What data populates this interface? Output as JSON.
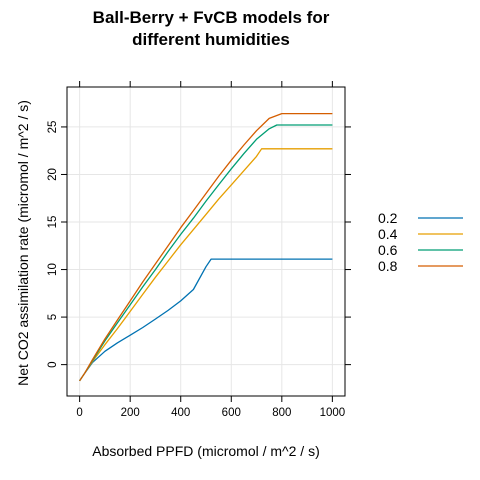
{
  "chart_data": {
    "type": "line",
    "title_lines": [
      "Ball-Berry + FvCB models for",
      "different humidities"
    ],
    "xlabel": "Absorbed PPFD (micromol / m^2 / s)",
    "ylabel": "Net CO2 assimilation rate (micromol / m^2 / s)",
    "xlim": [
      -50,
      1050
    ],
    "ylim": [
      -3.3,
      29.2
    ],
    "xticks": [
      0,
      200,
      400,
      600,
      800,
      1000
    ],
    "yticks": [
      0,
      5,
      10,
      15,
      20,
      25
    ],
    "grid": true,
    "legend_position": "right",
    "x": [
      0,
      20,
      50,
      100,
      150,
      200,
      250,
      300,
      350,
      400,
      450,
      500,
      550,
      600,
      650,
      700,
      750,
      800,
      850,
      900,
      950,
      1000
    ],
    "series": [
      {
        "name": "0.2",
        "color": "#0072B2",
        "points": [
          [
            0,
            -1.7
          ],
          [
            20,
            -0.9
          ],
          [
            50,
            0.2
          ],
          [
            100,
            1.4
          ],
          [
            150,
            2.3
          ],
          [
            200,
            3.1
          ],
          [
            250,
            3.9
          ],
          [
            300,
            4.8
          ],
          [
            350,
            5.7
          ],
          [
            400,
            6.7
          ],
          [
            450,
            7.9
          ],
          [
            500,
            10.3
          ],
          [
            520,
            11.1
          ],
          [
            550,
            11.1
          ],
          [
            600,
            11.1
          ],
          [
            650,
            11.1
          ],
          [
            700,
            11.1
          ],
          [
            750,
            11.1
          ],
          [
            800,
            11.1
          ],
          [
            850,
            11.1
          ],
          [
            900,
            11.1
          ],
          [
            950,
            11.1
          ],
          [
            1000,
            11.1
          ]
        ]
      },
      {
        "name": "0.4",
        "color": "#E69F00",
        "points": [
          [
            0,
            -1.7
          ],
          [
            20,
            -0.9
          ],
          [
            50,
            0.3
          ],
          [
            100,
            2.1
          ],
          [
            150,
            3.8
          ],
          [
            200,
            5.6
          ],
          [
            250,
            7.4
          ],
          [
            300,
            9.2
          ],
          [
            350,
            10.9
          ],
          [
            400,
            12.6
          ],
          [
            450,
            14.2
          ],
          [
            500,
            15.8
          ],
          [
            550,
            17.4
          ],
          [
            600,
            18.9
          ],
          [
            650,
            20.4
          ],
          [
            700,
            21.9
          ],
          [
            720,
            22.7
          ],
          [
            750,
            22.7
          ],
          [
            800,
            22.7
          ],
          [
            850,
            22.7
          ],
          [
            900,
            22.7
          ],
          [
            950,
            22.7
          ],
          [
            1000,
            22.7
          ]
        ]
      },
      {
        "name": "0.6",
        "color": "#009E73",
        "points": [
          [
            0,
            -1.7
          ],
          [
            20,
            -0.9
          ],
          [
            50,
            0.4
          ],
          [
            100,
            2.5
          ],
          [
            150,
            4.4
          ],
          [
            200,
            6.3
          ],
          [
            250,
            8.2
          ],
          [
            300,
            10.0
          ],
          [
            350,
            11.9
          ],
          [
            400,
            13.7
          ],
          [
            450,
            15.4
          ],
          [
            500,
            17.2
          ],
          [
            550,
            18.9
          ],
          [
            600,
            20.6
          ],
          [
            650,
            22.2
          ],
          [
            700,
            23.7
          ],
          [
            750,
            24.8
          ],
          [
            780,
            25.2
          ],
          [
            800,
            25.2
          ],
          [
            850,
            25.2
          ],
          [
            900,
            25.2
          ],
          [
            950,
            25.2
          ],
          [
            1000,
            25.2
          ]
        ]
      },
      {
        "name": "0.8",
        "color": "#D55E00",
        "points": [
          [
            0,
            -1.7
          ],
          [
            20,
            -0.9
          ],
          [
            50,
            0.5
          ],
          [
            100,
            2.7
          ],
          [
            150,
            4.7
          ],
          [
            200,
            6.7
          ],
          [
            250,
            8.7
          ],
          [
            300,
            10.6
          ],
          [
            350,
            12.5
          ],
          [
            400,
            14.4
          ],
          [
            450,
            16.2
          ],
          [
            500,
            18.0
          ],
          [
            550,
            19.8
          ],
          [
            600,
            21.5
          ],
          [
            650,
            23.1
          ],
          [
            700,
            24.6
          ],
          [
            750,
            25.9
          ],
          [
            800,
            26.4
          ],
          [
            850,
            26.4
          ],
          [
            900,
            26.4
          ],
          [
            950,
            26.4
          ],
          [
            1000,
            26.4
          ]
        ]
      }
    ]
  }
}
